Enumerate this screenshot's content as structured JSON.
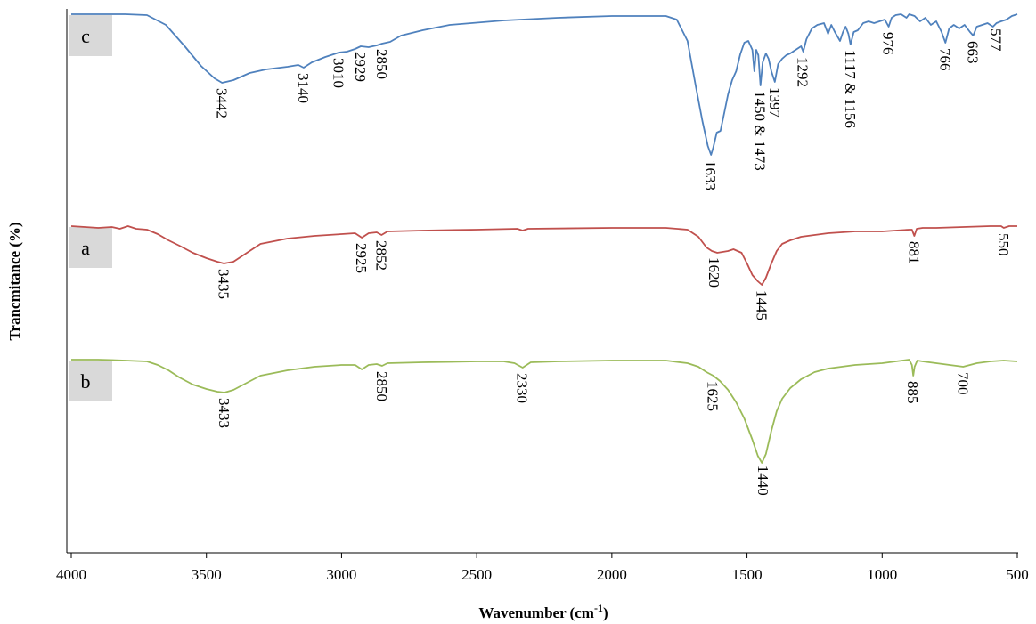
{
  "chart_data": {
    "type": "line",
    "xlabel": "Wavenumber (cm",
    "xlabel_sup": "-1",
    "xlabel_end": ")",
    "ylabel": "Trancmitance (%)",
    "xlim": [
      4000,
      500
    ],
    "x_reversed": true,
    "x_ticks": [
      "4000",
      "3500",
      "3000",
      "2500",
      "2000",
      "1500",
      "1000",
      "500"
    ],
    "grid": false,
    "series": [
      {
        "name": "c",
        "color": "#4f81bd",
        "baseline": 16,
        "points": [
          [
            4000,
            0
          ],
          [
            3800,
            0
          ],
          [
            3720,
            1
          ],
          [
            3650,
            12
          ],
          [
            3580,
            36
          ],
          [
            3520,
            58
          ],
          [
            3470,
            72
          ],
          [
            3442,
            77
          ],
          [
            3400,
            74
          ],
          [
            3340,
            66
          ],
          [
            3280,
            62
          ],
          [
            3200,
            59
          ],
          [
            3160,
            57
          ],
          [
            3140,
            60
          ],
          [
            3110,
            54
          ],
          [
            3060,
            48
          ],
          [
            3010,
            43
          ],
          [
            2980,
            42
          ],
          [
            2950,
            39
          ],
          [
            2929,
            36
          ],
          [
            2900,
            37
          ],
          [
            2870,
            35
          ],
          [
            2850,
            33
          ],
          [
            2820,
            31
          ],
          [
            2780,
            24
          ],
          [
            2700,
            18
          ],
          [
            2600,
            12
          ],
          [
            2400,
            7
          ],
          [
            2200,
            4
          ],
          [
            2000,
            2
          ],
          [
            1900,
            2
          ],
          [
            1800,
            2
          ],
          [
            1760,
            6
          ],
          [
            1720,
            30
          ],
          [
            1690,
            80
          ],
          [
            1665,
            120
          ],
          [
            1645,
            148
          ],
          [
            1633,
            158
          ],
          [
            1625,
            150
          ],
          [
            1612,
            133
          ],
          [
            1598,
            131
          ],
          [
            1585,
            112
          ],
          [
            1570,
            90
          ],
          [
            1555,
            74
          ],
          [
            1540,
            64
          ],
          [
            1525,
            45
          ],
          [
            1510,
            32
          ],
          [
            1495,
            30
          ],
          [
            1480,
            40
          ],
          [
            1473,
            64
          ],
          [
            1466,
            40
          ],
          [
            1458,
            46
          ],
          [
            1450,
            80
          ],
          [
            1442,
            54
          ],
          [
            1430,
            44
          ],
          [
            1420,
            50
          ],
          [
            1410,
            64
          ],
          [
            1397,
            76
          ],
          [
            1385,
            56
          ],
          [
            1370,
            50
          ],
          [
            1355,
            46
          ],
          [
            1340,
            44
          ],
          [
            1320,
            40
          ],
          [
            1300,
            36
          ],
          [
            1292,
            42
          ],
          [
            1280,
            28
          ],
          [
            1260,
            16
          ],
          [
            1240,
            12
          ],
          [
            1215,
            10
          ],
          [
            1200,
            22
          ],
          [
            1188,
            12
          ],
          [
            1175,
            20
          ],
          [
            1156,
            30
          ],
          [
            1145,
            20
          ],
          [
            1135,
            14
          ],
          [
            1125,
            22
          ],
          [
            1117,
            34
          ],
          [
            1105,
            20
          ],
          [
            1090,
            18
          ],
          [
            1070,
            10
          ],
          [
            1050,
            8
          ],
          [
            1030,
            10
          ],
          [
            1010,
            8
          ],
          [
            990,
            6
          ],
          [
            976,
            14
          ],
          [
            965,
            4
          ],
          [
            950,
            1
          ],
          [
            930,
            0
          ],
          [
            910,
            4
          ],
          [
            900,
            0
          ],
          [
            880,
            2
          ],
          [
            860,
            8
          ],
          [
            840,
            4
          ],
          [
            820,
            12
          ],
          [
            800,
            8
          ],
          [
            780,
            20
          ],
          [
            766,
            32
          ],
          [
            752,
            16
          ],
          [
            735,
            12
          ],
          [
            715,
            16
          ],
          [
            695,
            12
          ],
          [
            675,
            20
          ],
          [
            663,
            24
          ],
          [
            650,
            14
          ],
          [
            630,
            12
          ],
          [
            610,
            10
          ],
          [
            590,
            14
          ],
          [
            577,
            10
          ],
          [
            560,
            8
          ],
          [
            540,
            6
          ],
          [
            520,
            2
          ],
          [
            500,
            0
          ]
        ],
        "peaks": [
          {
            "label": "3442",
            "x": 3442
          },
          {
            "label": "3140",
            "x": 3140
          },
          {
            "label": "3010",
            "x": 3010
          },
          {
            "label": "2929",
            "x": 2929
          },
          {
            "label": "2850",
            "x": 2850
          },
          {
            "label": "1633",
            "x": 1633
          },
          {
            "label": "1450 & 1473",
            "x": 1450
          },
          {
            "label": "1397",
            "x": 1397
          },
          {
            "label": "1292",
            "x": 1292
          },
          {
            "label": "1117 & 1156",
            "x": 1117
          },
          {
            "label": "976",
            "x": 976
          },
          {
            "label": "766",
            "x": 766
          },
          {
            "label": "663",
            "x": 663
          },
          {
            "label": "577",
            "x": 577
          }
        ]
      },
      {
        "name": "a",
        "color": "#c0504d",
        "baseline": 254,
        "points": [
          [
            4000,
            0
          ],
          [
            3900,
            2
          ],
          [
            3850,
            1
          ],
          [
            3820,
            3
          ],
          [
            3790,
            0
          ],
          [
            3760,
            3
          ],
          [
            3720,
            4
          ],
          [
            3680,
            9
          ],
          [
            3640,
            16
          ],
          [
            3600,
            22
          ],
          [
            3550,
            30
          ],
          [
            3500,
            36
          ],
          [
            3460,
            40
          ],
          [
            3435,
            42
          ],
          [
            3400,
            40
          ],
          [
            3350,
            30
          ],
          [
            3300,
            20
          ],
          [
            3200,
            14
          ],
          [
            3100,
            11
          ],
          [
            3000,
            9
          ],
          [
            2950,
            8
          ],
          [
            2925,
            13
          ],
          [
            2900,
            8
          ],
          [
            2870,
            7
          ],
          [
            2852,
            10
          ],
          [
            2830,
            6
          ],
          [
            2700,
            5
          ],
          [
            2500,
            4
          ],
          [
            2350,
            3
          ],
          [
            2330,
            5
          ],
          [
            2310,
            3
          ],
          [
            2000,
            2
          ],
          [
            1800,
            2
          ],
          [
            1720,
            4
          ],
          [
            1680,
            12
          ],
          [
            1650,
            24
          ],
          [
            1630,
            28
          ],
          [
            1610,
            30
          ],
          [
            1590,
            29
          ],
          [
            1570,
            28
          ],
          [
            1550,
            26
          ],
          [
            1520,
            30
          ],
          [
            1500,
            42
          ],
          [
            1480,
            55
          ],
          [
            1460,
            62
          ],
          [
            1445,
            66
          ],
          [
            1430,
            58
          ],
          [
            1410,
            42
          ],
          [
            1390,
            28
          ],
          [
            1370,
            20
          ],
          [
            1340,
            16
          ],
          [
            1300,
            12
          ],
          [
            1250,
            10
          ],
          [
            1200,
            8
          ],
          [
            1100,
            6
          ],
          [
            1000,
            6
          ],
          [
            950,
            5
          ],
          [
            900,
            4
          ],
          [
            890,
            4
          ],
          [
            881,
            11
          ],
          [
            872,
            3
          ],
          [
            850,
            2
          ],
          [
            800,
            2
          ],
          [
            700,
            1
          ],
          [
            600,
            0
          ],
          [
            560,
            0
          ],
          [
            550,
            2
          ],
          [
            530,
            0
          ],
          [
            500,
            0
          ]
        ],
        "peaks": [
          {
            "label": "3435",
            "x": 3435
          },
          {
            "label": "2925",
            "x": 2925
          },
          {
            "label": "2852",
            "x": 2852
          },
          {
            "label": "1620",
            "x": 1620
          },
          {
            "label": "1445",
            "x": 1445
          },
          {
            "label": "881",
            "x": 881
          },
          {
            "label": "550",
            "x": 550
          }
        ]
      },
      {
        "name": "b",
        "color": "#9bbb59",
        "baseline": 404,
        "points": [
          [
            4000,
            0
          ],
          [
            3900,
            0
          ],
          [
            3800,
            1
          ],
          [
            3720,
            2
          ],
          [
            3680,
            6
          ],
          [
            3640,
            12
          ],
          [
            3600,
            20
          ],
          [
            3550,
            28
          ],
          [
            3500,
            33
          ],
          [
            3460,
            36
          ],
          [
            3433,
            37
          ],
          [
            3400,
            34
          ],
          [
            3350,
            26
          ],
          [
            3300,
            18
          ],
          [
            3200,
            12
          ],
          [
            3100,
            8
          ],
          [
            3000,
            6
          ],
          [
            2950,
            6
          ],
          [
            2925,
            11
          ],
          [
            2900,
            6
          ],
          [
            2870,
            5
          ],
          [
            2850,
            7
          ],
          [
            2830,
            4
          ],
          [
            2700,
            3
          ],
          [
            2500,
            2
          ],
          [
            2400,
            2
          ],
          [
            2360,
            4
          ],
          [
            2330,
            9
          ],
          [
            2300,
            3
          ],
          [
            2200,
            2
          ],
          [
            2000,
            1
          ],
          [
            1800,
            1
          ],
          [
            1720,
            4
          ],
          [
            1680,
            8
          ],
          [
            1650,
            14
          ],
          [
            1625,
            18
          ],
          [
            1600,
            24
          ],
          [
            1570,
            34
          ],
          [
            1540,
            48
          ],
          [
            1510,
            66
          ],
          [
            1480,
            90
          ],
          [
            1460,
            108
          ],
          [
            1445,
            116
          ],
          [
            1430,
            106
          ],
          [
            1410,
            80
          ],
          [
            1390,
            58
          ],
          [
            1370,
            44
          ],
          [
            1340,
            32
          ],
          [
            1300,
            22
          ],
          [
            1250,
            14
          ],
          [
            1200,
            10
          ],
          [
            1100,
            6
          ],
          [
            1000,
            4
          ],
          [
            950,
            2
          ],
          [
            900,
            0
          ],
          [
            890,
            6
          ],
          [
            885,
            18
          ],
          [
            880,
            8
          ],
          [
            870,
            1
          ],
          [
            850,
            2
          ],
          [
            800,
            4
          ],
          [
            750,
            6
          ],
          [
            700,
            8
          ],
          [
            650,
            4
          ],
          [
            600,
            2
          ],
          [
            550,
            1
          ],
          [
            500,
            2
          ]
        ],
        "peaks": [
          {
            "label": "3433",
            "x": 3433
          },
          {
            "label": "2850",
            "x": 2850
          },
          {
            "label": "2330",
            "x": 2330
          },
          {
            "label": "1625",
            "x": 1625
          },
          {
            "label": "1440",
            "x": 1440
          },
          {
            "label": "885",
            "x": 885
          },
          {
            "label": "700",
            "x": 700
          }
        ]
      }
    ],
    "annotations": [
      {
        "text": "c",
        "series": "c"
      },
      {
        "text": "a",
        "series": "a"
      },
      {
        "text": "b",
        "series": "b"
      }
    ],
    "badge_color": "#d9d9d9"
  }
}
